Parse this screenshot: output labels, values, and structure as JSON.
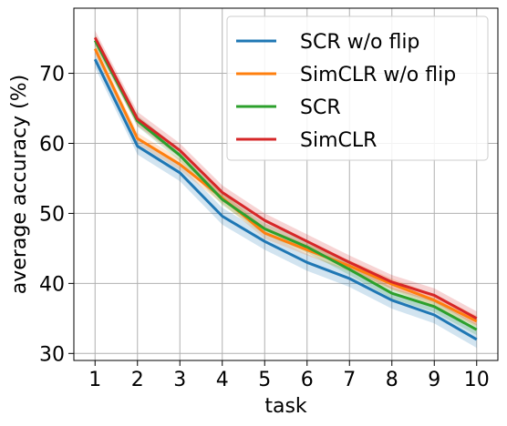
{
  "chart_data": {
    "type": "line",
    "xlabel": "task",
    "ylabel": "average accuracy (%)",
    "x": [
      1,
      2,
      3,
      4,
      5,
      6,
      7,
      8,
      9,
      10
    ],
    "xlim": [
      0.5,
      10.5
    ],
    "ylim": [
      29,
      79.3
    ],
    "yticks": [
      30,
      40,
      50,
      60,
      70
    ],
    "grid": true,
    "legend_position": "top-right",
    "series": [
      {
        "name": "SCR w/o flip",
        "color": "#1f77b4",
        "values": [
          72.0,
          59.6,
          55.8,
          49.6,
          46.0,
          43.0,
          40.7,
          37.6,
          35.5,
          32.0
        ],
        "band": 1.2
      },
      {
        "name": "SimCLR w/o flip",
        "color": "#ff7f0e",
        "values": [
          73.5,
          60.7,
          57.0,
          52.2,
          47.2,
          44.8,
          42.5,
          39.9,
          37.6,
          34.6
        ],
        "band": 0.8
      },
      {
        "name": "SCR",
        "color": "#2ca02c",
        "values": [
          74.7,
          63.2,
          58.3,
          52.0,
          47.8,
          45.2,
          42.0,
          38.6,
          36.7,
          33.4
        ],
        "band": 0.8
      },
      {
        "name": "SimCLR",
        "color": "#d62728",
        "values": [
          75.1,
          63.5,
          59.0,
          53.0,
          49.0,
          46.0,
          43.0,
          40.2,
          38.3,
          35.0
        ],
        "band": 1.0
      }
    ]
  }
}
